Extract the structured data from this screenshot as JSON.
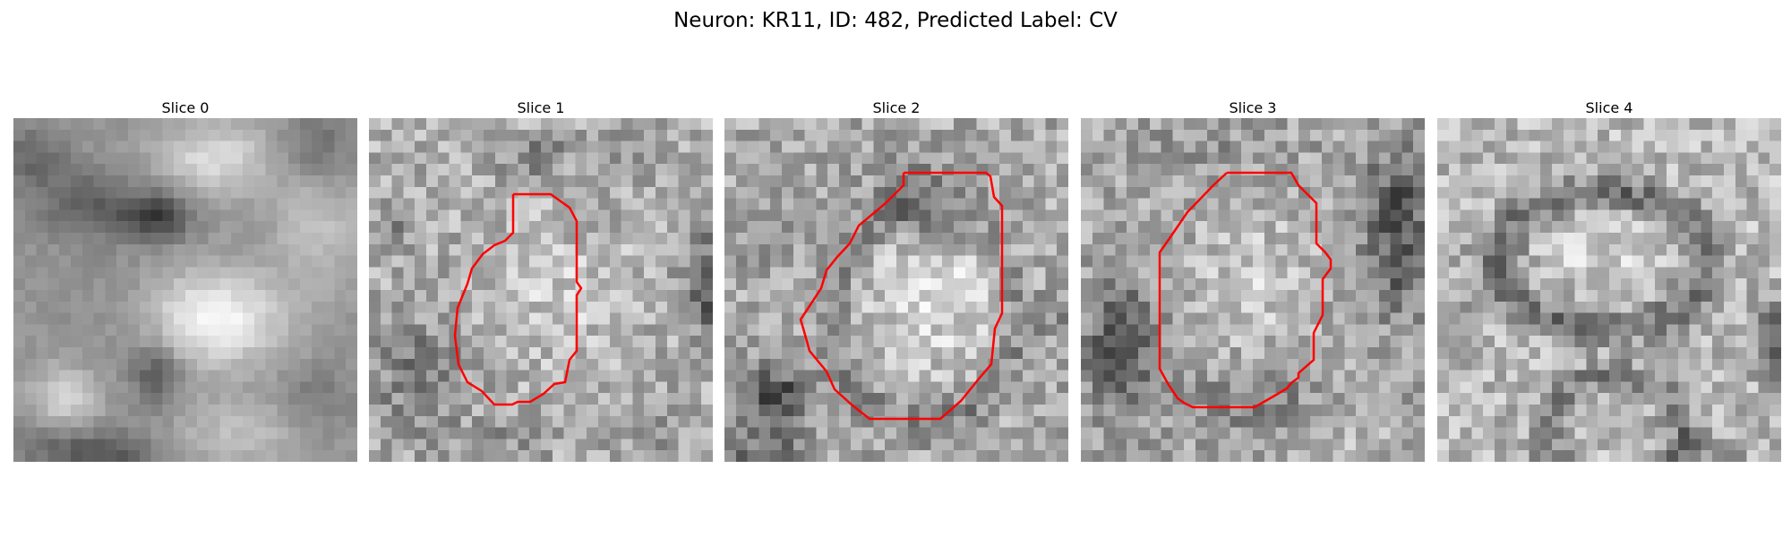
{
  "figure": {
    "title": "Neuron: KR11, ID: 482, Predicted Label: CV"
  },
  "colors": {
    "outline": "#ff0000",
    "colormap": "gray"
  },
  "panels": [
    {
      "title": "Slice 0",
      "has_outline": false
    },
    {
      "title": "Slice 1",
      "has_outline": true
    },
    {
      "title": "Slice 2",
      "has_outline": true
    },
    {
      "title": "Slice 3",
      "has_outline": true
    },
    {
      "title": "Slice 4",
      "has_outline": false
    }
  ]
}
